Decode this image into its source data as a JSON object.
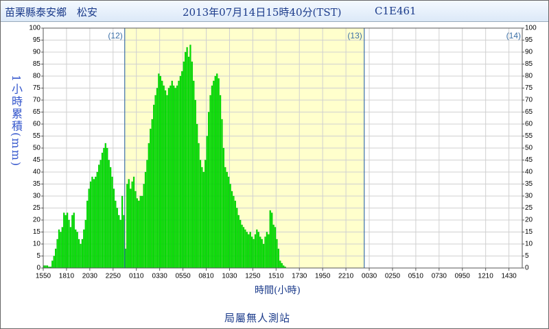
{
  "chart_data": {
    "type": "bar",
    "station": "苗栗縣泰安鄉　松安",
    "title": "2013年07月14日15時40分(TST)",
    "station_id": "C1E461",
    "ylabel": "1小時累積(mm)",
    "xlabel": "時間(小時)",
    "footer": "局屬無人測站",
    "color": "#00e600",
    "highlight_color": "#ffffcc",
    "grid": true,
    "ylim": [
      0,
      100
    ],
    "yticks": [
      0,
      5,
      10,
      15,
      20,
      25,
      30,
      35,
      40,
      45,
      50,
      55,
      60,
      65,
      70,
      75,
      80,
      85,
      90,
      95,
      100
    ],
    "xlim": [
      0,
      288
    ],
    "xticks": [
      {
        "value": 0,
        "label": "1550"
      },
      {
        "value": 14,
        "label": "1810"
      },
      {
        "value": 28,
        "label": "2030"
      },
      {
        "value": 42,
        "label": "2250"
      },
      {
        "value": 56,
        "label": "0110"
      },
      {
        "value": 70,
        "label": "0330"
      },
      {
        "value": 84,
        "label": "0550"
      },
      {
        "value": 98,
        "label": "0810"
      },
      {
        "value": 112,
        "label": "1030"
      },
      {
        "value": 126,
        "label": "1250"
      },
      {
        "value": 140,
        "label": "1510"
      },
      {
        "value": 154,
        "label": "1730"
      },
      {
        "value": 168,
        "label": "1950"
      },
      {
        "value": 182,
        "label": "2210"
      },
      {
        "value": 196,
        "label": "0030"
      },
      {
        "value": 210,
        "label": "0250"
      },
      {
        "value": 224,
        "label": "0510"
      },
      {
        "value": 238,
        "label": "0730"
      },
      {
        "value": 252,
        "label": "0950"
      },
      {
        "value": 266,
        "label": "1210"
      },
      {
        "value": 280,
        "label": "1430"
      }
    ],
    "day_markers": [
      {
        "value": 49,
        "label": "(12)"
      },
      {
        "value": 193,
        "label": "(13)"
      }
    ],
    "end_day_label": "(14)",
    "values": [
      1,
      1,
      1,
      0.5,
      0.5,
      3,
      5,
      8,
      12,
      16,
      15,
      17,
      23,
      22,
      23,
      20,
      17,
      22,
      23,
      16,
      15,
      12,
      10,
      12,
      16,
      20,
      28,
      33,
      36,
      38,
      37,
      38,
      40,
      43,
      45,
      48,
      50,
      52,
      50,
      45,
      42,
      38,
      33,
      28,
      25,
      22,
      20,
      30,
      22,
      8,
      35,
      37,
      33,
      36,
      38,
      32,
      29,
      28,
      30,
      30,
      35,
      40,
      45,
      52,
      58,
      62,
      68,
      72,
      75,
      81,
      80,
      78,
      76,
      74,
      72,
      75,
      76,
      78,
      76,
      75,
      76,
      78,
      80,
      82,
      86,
      90,
      92,
      88,
      93,
      86,
      78,
      70,
      60,
      52,
      45,
      42,
      40,
      45,
      55,
      65,
      72,
      76,
      78,
      80,
      81,
      79,
      72,
      62,
      50,
      42,
      40,
      38,
      35,
      32,
      30,
      28,
      25,
      22,
      20,
      18,
      17,
      16,
      15,
      14,
      15,
      13,
      12,
      14,
      16,
      15,
      13,
      12,
      10,
      13,
      15,
      14,
      24,
      23,
      18,
      17,
      12,
      8,
      3,
      2,
      1,
      0.5,
      0,
      0
    ]
  }
}
